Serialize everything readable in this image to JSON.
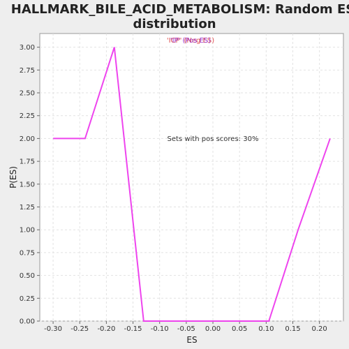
{
  "chart_data": {
    "type": "line",
    "title_lines": [
      "HALLMARK_BILE_ACID_METABOLISM: Random ES",
      "distribution"
    ],
    "xlabel": "ES",
    "ylabel": "P(ES)",
    "xlim": [
      -0.325,
      0.245
    ],
    "ylim": [
      0,
      3.15
    ],
    "x_ticks": [
      -0.3,
      -0.25,
      -0.2,
      -0.15,
      -0.1,
      -0.05,
      0.0,
      0.05,
      0.1,
      0.15,
      0.2
    ],
    "x_tick_labels": [
      "-0.30",
      "-0.25",
      "-0.20",
      "-0.15",
      "-0.10",
      "-0.05",
      "0.00",
      "0.05",
      "0.10",
      "0.15",
      "0.20"
    ],
    "y_ticks": [
      0,
      0.25,
      0.5,
      0.75,
      1.0,
      1.25,
      1.5,
      1.75,
      2.0,
      2.25,
      2.5,
      2.75,
      3.0
    ],
    "y_tick_labels": [
      "0.00",
      "0.25",
      "0.50",
      "0.75",
      "1.00",
      "1.25",
      "1.50",
      "1.75",
      "2.00",
      "2.25",
      "2.50",
      "2.75",
      "3.00"
    ],
    "grid": true,
    "series": [
      {
        "color": "#ee44ee",
        "x": [
          -0.3,
          -0.24,
          -0.185,
          -0.13,
          -0.075,
          -0.02,
          0.035,
          0.08,
          0.105,
          0.16,
          0.22
        ],
        "y": [
          2.0,
          2.0,
          3.0,
          0.0,
          0.0,
          0.0,
          0.0,
          0.0,
          0.0,
          1.0,
          2.0
        ]
      }
    ],
    "legend": {
      "placement": "top-center",
      "overlay_text_a": "'ICP' (Neg ES)",
      "overlay_text_b": "'IP' (Pos ES)",
      "color_a": "#e05050",
      "color_b": "#9933cc"
    },
    "annotation": "Sets with pos scores: 30%"
  }
}
